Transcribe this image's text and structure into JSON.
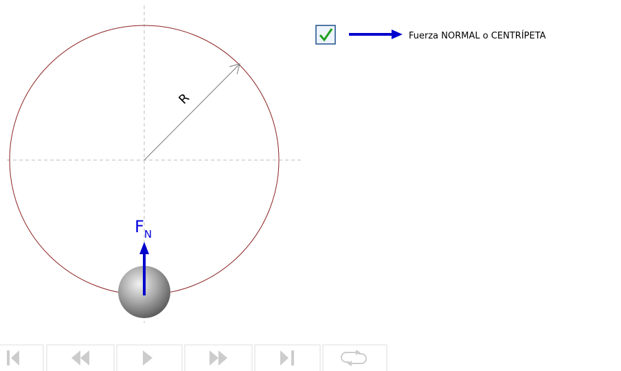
{
  "legend": {
    "label": "Fuerza NORMAL o CENTRÍPETA"
  },
  "diagram": {
    "radius_label": "R",
    "force_label": "F",
    "force_subscript": "N"
  }
}
